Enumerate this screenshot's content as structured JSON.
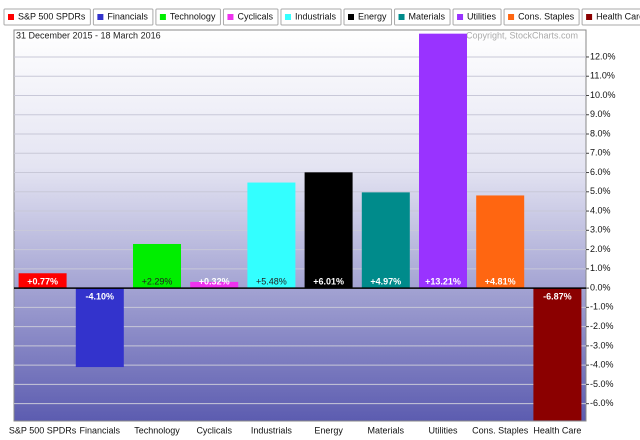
{
  "chart_data": {
    "type": "bar",
    "subtitle": "31 December 2015 - 18 March 2016",
    "credit": "Copyright, StockCharts.com",
    "categories": [
      "S&P 500 SPDRs",
      "Financials",
      "Technology",
      "Cyclicals",
      "Industrials",
      "Energy",
      "Materials",
      "Utilities",
      "Cons. Staples",
      "Health Care"
    ],
    "values": [
      0.77,
      -4.1,
      2.29,
      0.32,
      5.48,
      6.01,
      4.97,
      13.21,
      4.81,
      -6.87
    ],
    "value_labels": [
      "+0.77%",
      "-4.10%",
      "+2.29%",
      "+0.32%",
      "+5.48%",
      "+6.01%",
      "+4.97%",
      "+13.21%",
      "+4.81%",
      "-6.87%"
    ],
    "colors": [
      "#ff0000",
      "#3333cc",
      "#00ee00",
      "#ee33ee",
      "#33ffff",
      "#000000",
      "#008b8b",
      "#9933ff",
      "#ff6611",
      "#8b0000"
    ],
    "ylim": [
      -6.9,
      13.4
    ],
    "yticks": [
      {
        "value": -6,
        "label": "-6.0%"
      },
      {
        "value": -5,
        "label": "-5.0%"
      },
      {
        "value": -4,
        "label": "-4.0%"
      },
      {
        "value": -3,
        "label": "-3.0%"
      },
      {
        "value": -2,
        "label": "-2.0%"
      },
      {
        "value": -1,
        "label": "-1.0%"
      },
      {
        "value": 0,
        "label": "0.0%"
      },
      {
        "value": 1,
        "label": "1.0%"
      },
      {
        "value": 2,
        "label": "2.0%"
      },
      {
        "value": 3,
        "label": "3.0%"
      },
      {
        "value": 4,
        "label": "4.0%"
      },
      {
        "value": 5,
        "label": "5.0%"
      },
      {
        "value": 6,
        "label": "6.0%"
      },
      {
        "value": 7,
        "label": "7.0%"
      },
      {
        "value": 8,
        "label": "8.0%"
      },
      {
        "value": 9,
        "label": "9.0%"
      },
      {
        "value": 10,
        "label": "10.0%"
      },
      {
        "value": 11,
        "label": "11.0%"
      },
      {
        "value": 12,
        "label": "12.0%"
      }
    ],
    "grid": true
  }
}
